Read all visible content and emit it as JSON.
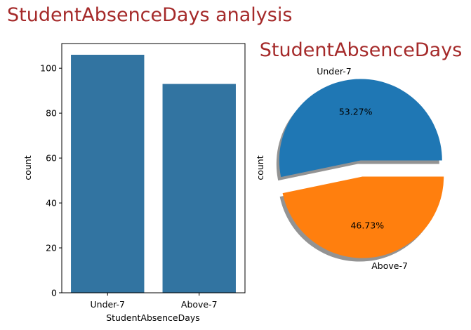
{
  "figure": {
    "suptitle": "StudentAbsenceDays analysis",
    "title_color": "#a52a2a"
  },
  "chart_data": [
    {
      "type": "bar",
      "categories": [
        "Under-7",
        "Above-7"
      ],
      "values": [
        106,
        93
      ],
      "xlabel": "StudentAbsenceDays",
      "ylabel": "count",
      "ylim": [
        0,
        111
      ],
      "yticks": [
        0,
        20,
        40,
        60,
        80,
        100
      ],
      "grid": false,
      "color": "#3274a1"
    },
    {
      "type": "pie",
      "title": "StudentAbsenceDays",
      "title_color": "#a52a2a",
      "ylabel": "count",
      "labels": [
        "Under-7",
        "Above-7"
      ],
      "values": [
        106,
        93
      ],
      "percent_labels": [
        "53.27%",
        "46.73%"
      ],
      "colors": [
        "#1f77b4",
        "#ff7f0e"
      ],
      "exploded": true,
      "shadow": true
    }
  ]
}
